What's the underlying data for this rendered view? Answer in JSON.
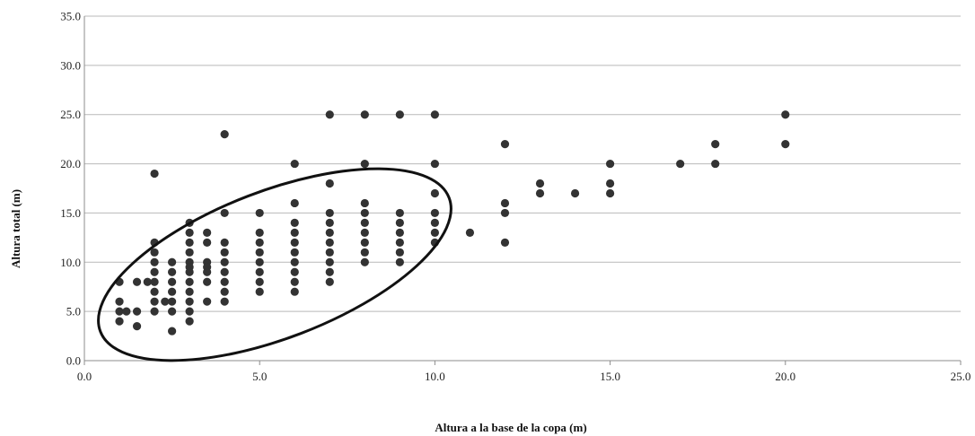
{
  "chart_data": {
    "type": "scatter",
    "title": "",
    "xlabel": "Altura a la base de la copa (m)",
    "ylabel": "Altura total (m)",
    "xlim": [
      0,
      25
    ],
    "ylim": [
      0,
      35
    ],
    "x_ticks": [
      "0.0",
      "5.0",
      "10.0",
      "15.0",
      "20.0",
      "25.0"
    ],
    "y_ticks": [
      "0.0",
      "5.0",
      "10.0",
      "15.0",
      "20.0",
      "25.0",
      "30.0",
      "35.0"
    ],
    "grid": "horizontal",
    "legend": "none",
    "point_color": "#333333",
    "annotation": "ellipse enclosing the cluster of points from about x=1 to x=10",
    "points": [
      [
        1,
        8
      ],
      [
        1,
        6
      ],
      [
        1,
        5
      ],
      [
        1,
        4
      ],
      [
        1.2,
        5
      ],
      [
        1.5,
        8
      ],
      [
        1.5,
        5
      ],
      [
        1.5,
        3.5
      ],
      [
        1.8,
        8
      ],
      [
        2,
        19
      ],
      [
        2,
        12
      ],
      [
        2,
        11
      ],
      [
        2,
        10
      ],
      [
        2,
        9
      ],
      [
        2,
        8
      ],
      [
        2,
        7
      ],
      [
        2,
        6
      ],
      [
        2,
        5
      ],
      [
        2.3,
        6
      ],
      [
        2.5,
        10
      ],
      [
        2.5,
        9
      ],
      [
        2.5,
        8
      ],
      [
        2.5,
        7
      ],
      [
        2.5,
        6
      ],
      [
        2.5,
        5
      ],
      [
        2.5,
        3
      ],
      [
        3,
        14
      ],
      [
        3,
        13
      ],
      [
        3,
        12
      ],
      [
        3,
        11
      ],
      [
        3,
        10
      ],
      [
        3,
        9.5
      ],
      [
        3,
        9
      ],
      [
        3,
        8
      ],
      [
        3,
        7
      ],
      [
        3,
        6
      ],
      [
        3,
        5
      ],
      [
        3,
        4
      ],
      [
        3.5,
        13
      ],
      [
        3.5,
        12
      ],
      [
        3.5,
        10
      ],
      [
        3.5,
        9.5
      ],
      [
        3.5,
        9
      ],
      [
        3.5,
        8
      ],
      [
        3.5,
        6
      ],
      [
        4,
        23
      ],
      [
        4,
        15
      ],
      [
        4,
        12
      ],
      [
        4,
        11
      ],
      [
        4,
        10
      ],
      [
        4,
        9
      ],
      [
        4,
        8
      ],
      [
        4,
        7
      ],
      [
        4,
        6
      ],
      [
        5,
        15
      ],
      [
        5,
        13
      ],
      [
        5,
        12
      ],
      [
        5,
        11
      ],
      [
        5,
        10
      ],
      [
        5,
        9
      ],
      [
        5,
        8
      ],
      [
        5,
        7
      ],
      [
        6,
        20
      ],
      [
        6,
        16
      ],
      [
        6,
        14
      ],
      [
        6,
        13
      ],
      [
        6,
        12
      ],
      [
        6,
        11
      ],
      [
        6,
        10
      ],
      [
        6,
        9
      ],
      [
        6,
        8
      ],
      [
        6,
        7
      ],
      [
        7,
        25
      ],
      [
        7,
        18
      ],
      [
        7,
        15
      ],
      [
        7,
        14
      ],
      [
        7,
        13
      ],
      [
        7,
        12
      ],
      [
        7,
        11
      ],
      [
        7,
        10
      ],
      [
        7,
        9
      ],
      [
        7,
        8
      ],
      [
        8,
        25
      ],
      [
        8,
        20
      ],
      [
        8,
        16
      ],
      [
        8,
        15
      ],
      [
        8,
        14
      ],
      [
        8,
        13
      ],
      [
        8,
        12
      ],
      [
        8,
        11
      ],
      [
        8,
        10
      ],
      [
        9,
        25
      ],
      [
        9,
        15
      ],
      [
        9,
        14
      ],
      [
        9,
        13
      ],
      [
        9,
        12
      ],
      [
        9,
        11
      ],
      [
        9,
        10
      ],
      [
        10,
        25
      ],
      [
        10,
        20
      ],
      [
        10,
        17
      ],
      [
        10,
        15
      ],
      [
        10,
        14
      ],
      [
        10,
        13
      ],
      [
        10,
        12
      ],
      [
        11,
        13
      ],
      [
        12,
        22
      ],
      [
        12,
        16
      ],
      [
        12,
        15
      ],
      [
        12,
        12
      ],
      [
        13,
        18
      ],
      [
        13,
        17
      ],
      [
        14,
        17
      ],
      [
        15,
        20
      ],
      [
        15,
        18
      ],
      [
        15,
        17
      ],
      [
        17,
        20
      ],
      [
        18,
        22
      ],
      [
        18,
        20
      ],
      [
        20,
        25
      ],
      [
        20,
        22
      ]
    ]
  }
}
